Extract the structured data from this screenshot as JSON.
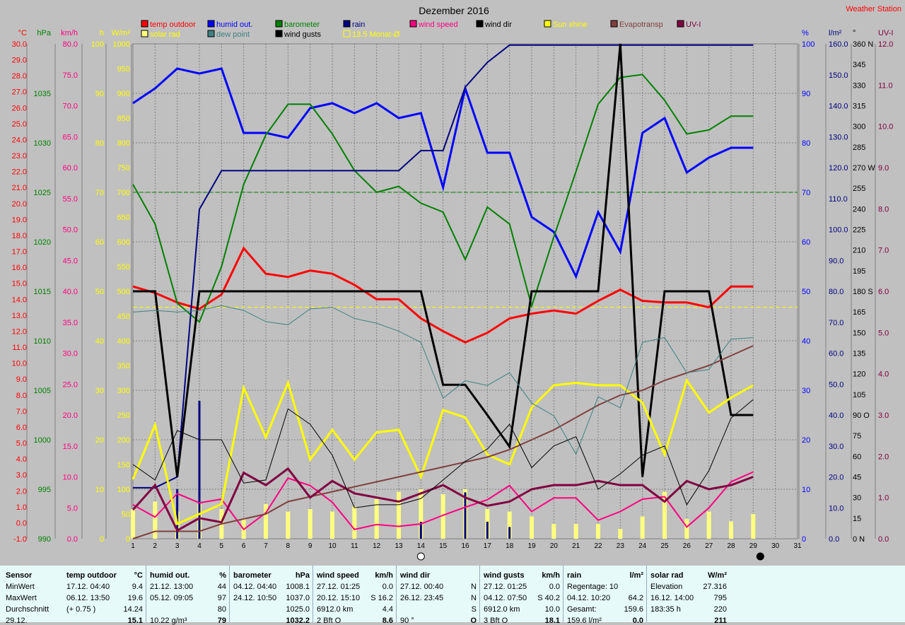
{
  "title": "Dezember 2016",
  "brand": "Weather Station",
  "colors": {
    "temp": "#ff0000",
    "humid": "#0000ff",
    "baro": "#008000",
    "rain": "#000080",
    "wind": "#ff0080",
    "dir": "#000000",
    "sun": "#ffff00",
    "evap": "#804040",
    "uvi": "#800040",
    "solar": "#ffff80",
    "dew": "#408080",
    "gusts": "#000000"
  },
  "axes": {
    "temp": {
      "unit": "°C",
      "min": -1.0,
      "max": 30.0,
      "step": 1.0,
      "decimals": 1
    },
    "baro": {
      "unit": "hPa",
      "min": 990,
      "max": 1040,
      "step": 5,
      "decimals": 0
    },
    "wind": {
      "unit": "km/h",
      "min": 0,
      "max": 80,
      "step": 5,
      "decimals": 1
    },
    "sun_h": {
      "unit": "h",
      "min": 0,
      "max": 100,
      "step": 10,
      "decimals": 0
    },
    "solar": {
      "unit": "W/m²",
      "min": 0,
      "max": 1000,
      "step": 50,
      "decimals": 0
    },
    "humid": {
      "unit": "%",
      "min": 0,
      "max": 100,
      "step": 10,
      "decimals": 0
    },
    "rain": {
      "unit": "l/m²",
      "min": 0,
      "max": 160,
      "step": 10,
      "decimals": 1
    },
    "dir": {
      "unit": "°",
      "min": 0,
      "max": 360,
      "step": 15,
      "decimals": 0,
      "named": {
        "0": "N",
        "90": "O",
        "180": "S",
        "270": "W",
        "360": "N"
      }
    },
    "uvi": {
      "unit": "UV-I",
      "min": 0,
      "max": 12,
      "step": 1,
      "decimals": 1
    }
  },
  "legend": [
    {
      "key": "temp",
      "label": "temp outdoor"
    },
    {
      "key": "humid",
      "label": "humid out."
    },
    {
      "key": "baro",
      "label": "barometer"
    },
    {
      "key": "rain",
      "label": "rain"
    },
    {
      "key": "wind",
      "label": "wind speed"
    },
    {
      "key": "dir",
      "label": "wind dir"
    },
    {
      "key": "sun",
      "label": "Sun shine"
    },
    {
      "key": "evap",
      "label": "Evapotransp"
    },
    {
      "key": "uvi",
      "label": "UV-I"
    },
    {
      "key": "solar",
      "label": "solar rad"
    },
    {
      "key": "dew",
      "label": "dew point"
    },
    {
      "key": "gusts",
      "label": "wind gusts"
    },
    {
      "key": "avg",
      "label": "13.5 Monat-Ø"
    }
  ],
  "chart_data": {
    "type": "line",
    "days": [
      1,
      2,
      3,
      4,
      5,
      6,
      7,
      8,
      9,
      10,
      11,
      12,
      13,
      14,
      15,
      16,
      17,
      18,
      19,
      20,
      21,
      22,
      23,
      24,
      25,
      26,
      27,
      28,
      29,
      30,
      31
    ],
    "series": [
      {
        "name": "temp outdoor",
        "axis": "temp",
        "values": [
          14.8,
          14.4,
          13.8,
          13.4,
          14.3,
          17.2,
          15.6,
          15.4,
          15.8,
          15.6,
          14.9,
          14.0,
          14.0,
          12.8,
          12.0,
          11.3,
          11.9,
          12.8,
          13.1,
          13.3,
          13.1,
          13.9,
          14.6,
          13.9,
          13.8,
          13.8,
          13.5,
          14.8,
          14.8
        ]
      },
      {
        "name": "humid out.",
        "axis": "humid",
        "values": [
          88,
          91,
          95,
          94,
          95,
          82,
          82,
          81,
          87,
          88,
          86,
          88,
          85,
          86,
          71,
          91,
          78,
          78,
          65,
          62,
          53,
          66,
          58,
          82,
          85,
          74,
          77,
          79,
          79
        ]
      },
      {
        "name": "barometer",
        "axis": "baro",
        "values": [
          1025.8,
          1021.8,
          1013.8,
          1011.9,
          1017.5,
          1025.8,
          1030.8,
          1033.9,
          1033.9,
          1030.9,
          1027.2,
          1025.0,
          1025.6,
          1023.9,
          1023.0,
          1018.2,
          1023.5,
          1021.8,
          1013.5,
          1020.5,
          1027.1,
          1033.9,
          1036.6,
          1036.9,
          1034.3,
          1030.9,
          1031.3,
          1032.7,
          1032.7
        ]
      },
      {
        "name": "rain total",
        "axis": "rain",
        "values": [
          16.5,
          16.5,
          20.0,
          106.5,
          119.0,
          119.0,
          119.0,
          119.0,
          119.0,
          119.0,
          119.0,
          119.0,
          119.0,
          125.5,
          125.5,
          146.0,
          154.0,
          159.6,
          159.6,
          159.6,
          159.6,
          159.6,
          159.6,
          159.6,
          159.6,
          159.6,
          159.6,
          159.6,
          159.6
        ]
      },
      {
        "name": "wind speed",
        "axis": "wind",
        "values": [
          5.5,
          3.5,
          7.3,
          5.8,
          6.4,
          1.5,
          4.2,
          9.8,
          8.6,
          5.9,
          1.5,
          2.3,
          2.0,
          2.4,
          3.8,
          5.1,
          6.3,
          8.6,
          4.4,
          6.6,
          6.6,
          3.0,
          4.4,
          6.4,
          6.8,
          1.9,
          5.0,
          9.2,
          10.8
        ]
      },
      {
        "name": "wind dir",
        "axis": "dir",
        "values": [
          180,
          180,
          45,
          180,
          180,
          180,
          180,
          180,
          180,
          180,
          180,
          180,
          180,
          180,
          112,
          112,
          90,
          67,
          180,
          180,
          180,
          180,
          360,
          45,
          180,
          180,
          180,
          90,
          90
        ]
      },
      {
        "name": "Sun shine",
        "axis": "solar",
        "values": [
          120,
          230,
          30,
          50,
          70,
          305,
          205,
          315,
          160,
          220,
          160,
          215,
          220,
          125,
          260,
          245,
          170,
          150,
          265,
          310,
          315,
          310,
          310,
          275,
          170,
          320,
          255,
          285,
          310
        ]
      },
      {
        "name": "Evapotransp",
        "axis": "sun_h",
        "values": [
          0,
          1.5,
          1.5,
          1.5,
          3,
          4,
          5,
          7.5,
          8.5,
          9.5,
          10.5,
          11.5,
          12.5,
          13.5,
          14.5,
          15.5,
          16.5,
          18,
          20,
          22,
          24.5,
          27,
          29,
          30,
          32,
          33.5,
          35,
          37,
          39
        ]
      },
      {
        "name": "UV-I",
        "axis": "uvi",
        "values": [
          0.7,
          1.3,
          0.2,
          0.5,
          0.4,
          1.6,
          1.3,
          1.7,
          1.0,
          1.4,
          1.1,
          1.0,
          0.9,
          1.1,
          1.3,
          1.0,
          0.8,
          0.9,
          1.2,
          1.3,
          1.3,
          1.4,
          1.3,
          1.3,
          0.9,
          1.4,
          1.2,
          1.3,
          1.5
        ]
      },
      {
        "name": "dew point",
        "axis": "temp",
        "values": [
          13.2,
          13.3,
          13.2,
          13.3,
          13.6,
          13.3,
          12.6,
          12.4,
          13.4,
          13.5,
          12.8,
          12.5,
          12.0,
          11.3,
          7.8,
          8.9,
          8.6,
          9.4,
          7.5,
          6.7,
          4.3,
          7.9,
          7.2,
          11.3,
          11.6,
          9.4,
          9.6,
          11.5,
          11.6
        ]
      },
      {
        "name": "wind gusts",
        "axis": "wind",
        "values": [
          12.0,
          9.5,
          17.5,
          16.0,
          16.0,
          9.0,
          9.5,
          21.0,
          18.5,
          13.5,
          5.0,
          5.5,
          5.5,
          6.5,
          9.5,
          12.5,
          14.5,
          18.5,
          11.5,
          15.0,
          16.5,
          8.0,
          10.5,
          13.5,
          15.0,
          5.5,
          11.0,
          19.5,
          22.5
        ]
      }
    ],
    "bars": [
      {
        "name": "solar rad",
        "axis": "solar",
        "values": [
          60,
          75,
          55,
          70,
          60,
          40,
          70,
          55,
          60,
          55,
          65,
          80,
          95,
          100,
          90,
          100,
          60,
          55,
          45,
          30,
          30,
          30,
          20,
          45,
          95,
          40,
          55,
          35,
          50
        ]
      },
      {
        "name": "rain",
        "axis": "rain",
        "values": [
          0,
          0,
          16.0,
          44.6,
          0,
          0,
          0,
          0,
          0,
          0,
          0,
          0,
          0,
          5.5,
          0,
          15.0,
          5.5,
          3.8,
          0,
          0,
          0,
          0,
          0,
          0,
          0,
          0,
          0,
          0,
          0
        ]
      }
    ],
    "reference_lines": [
      {
        "name": "13.5 Monat-Ø",
        "axis": "temp",
        "value": 13.5
      },
      {
        "name": "barometer avg",
        "axis": "baro",
        "value": 1025.0
      }
    ],
    "xlim": [
      1,
      31
    ],
    "grid": true,
    "legend_position": "top"
  },
  "stats": {
    "row_labels": [
      "Sensor",
      "MinWert",
      "MaxWert",
      "Durchschnitt",
      "29.12."
    ],
    "columns": [
      {
        "title": "temp outdoor",
        "unit": "°C",
        "rows": [
          [
            "17.12.  04:40",
            "9.4"
          ],
          [
            "06.12.  13:50",
            "19.6"
          ],
          [
            "(+ 0.75 )",
            "14.24"
          ],
          [
            "",
            "15.1"
          ]
        ]
      },
      {
        "title": "humid out.",
        "unit": "%",
        "rows": [
          [
            "21.12.  13:00",
            "44"
          ],
          [
            "05.12.  09:05",
            "97"
          ],
          [
            "",
            "80"
          ],
          [
            "10.22 g/m³",
            "79"
          ]
        ]
      },
      {
        "title": "barometer",
        "unit": "hPa",
        "rows": [
          [
            "04.12.  04:40",
            "1008.1"
          ],
          [
            "24.12.  10:50",
            "1037.0"
          ],
          [
            "",
            "1025.0"
          ],
          [
            "",
            "1032.2"
          ]
        ]
      },
      {
        "title": "wind speed",
        "unit": "km/h",
        "rows": [
          [
            "27.12.  01:25",
            "0.0"
          ],
          [
            "20.12.  15:10",
            "S 16.2"
          ],
          [
            "6912.0 km",
            "4.4"
          ],
          [
            "2 Bft O",
            "8.6"
          ]
        ]
      },
      {
        "title": "wind dir",
        "unit": "",
        "rows": [
          [
            "27.12.  00:40",
            "N"
          ],
          [
            "26.12.  23:45",
            "N"
          ],
          [
            "",
            "S"
          ],
          [
            "90 °",
            "O"
          ]
        ]
      },
      {
        "title": "wind gusts",
        "unit": "km/h",
        "rows": [
          [
            "27.12.  01:25",
            "0.0"
          ],
          [
            "04.12.  07:50",
            "S 40.2"
          ],
          [
            "6912.0 km",
            "10.0"
          ],
          [
            "3 Bft O",
            "18.1"
          ]
        ]
      },
      {
        "title": "rain",
        "unit": "l/m²",
        "rows": [
          [
            "Regentage: 10",
            ""
          ],
          [
            "04.12.  10:20",
            "64.2"
          ],
          [
            "Gesamt:",
            "159.6"
          ],
          [
            "159.6 l/m²",
            "0.0"
          ]
        ]
      },
      {
        "title": "solar rad",
        "unit": "W/m²",
        "rows": [
          [
            "Elevation",
            "27.316"
          ],
          [
            "16.12.  14:00",
            "795"
          ],
          [
            "183:35 h",
            "220"
          ],
          [
            "",
            "211"
          ]
        ]
      }
    ]
  }
}
